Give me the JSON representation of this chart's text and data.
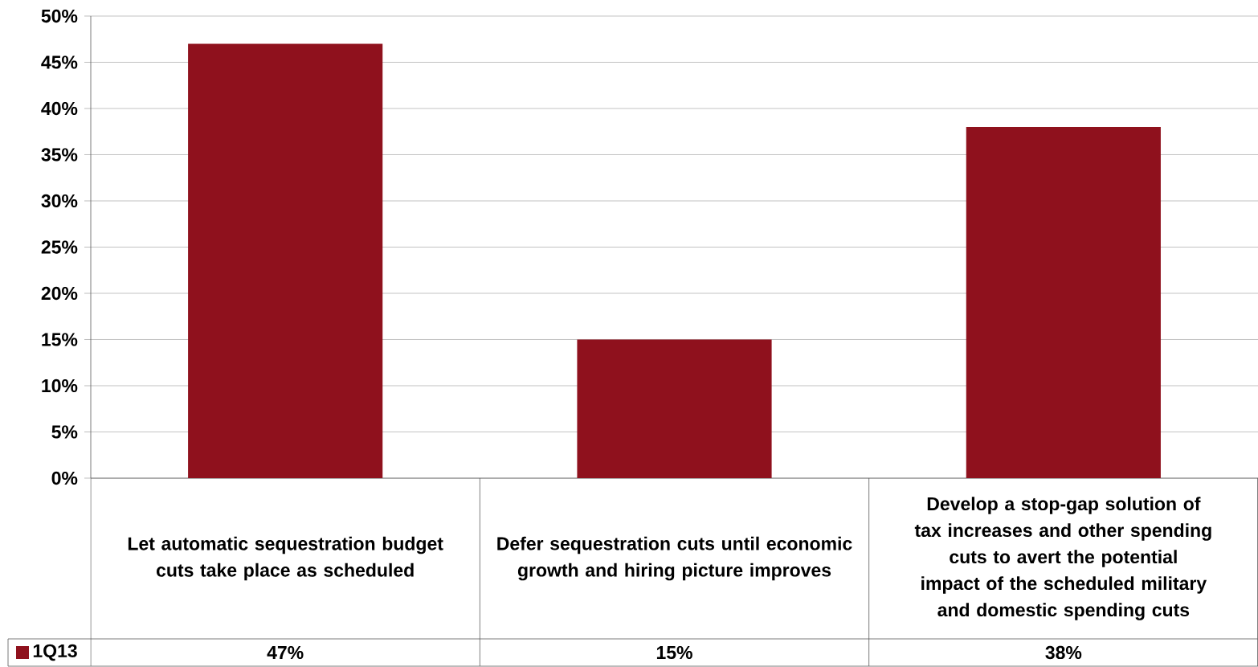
{
  "chart_data": {
    "type": "bar",
    "categories": [
      "Let automatic sequestration budget cuts take place as scheduled",
      "Defer sequestration cuts until economic growth and hiring picture improves",
      "Develop a stop-gap solution of tax increases and other spending cuts to avert the potential impact of the scheduled military and domestic spending cuts"
    ],
    "series": [
      {
        "name": "1Q13",
        "color": "#8f111d",
        "values": [
          47,
          15,
          38
        ],
        "value_labels": [
          "47%",
          "15%",
          "38%"
        ]
      }
    ],
    "ylim": [
      0,
      50
    ],
    "yticks": [
      {
        "value": 0,
        "label": "0%"
      },
      {
        "value": 5,
        "label": "5%"
      },
      {
        "value": 10,
        "label": "10%"
      },
      {
        "value": 15,
        "label": "15%"
      },
      {
        "value": 20,
        "label": "20%"
      },
      {
        "value": 25,
        "label": "25%"
      },
      {
        "value": 30,
        "label": "30%"
      },
      {
        "value": 35,
        "label": "35%"
      },
      {
        "value": 40,
        "label": "40%"
      },
      {
        "value": 45,
        "label": "45%"
      },
      {
        "value": 50,
        "label": "50%"
      }
    ],
    "grid": "y",
    "legend": "bottom left"
  }
}
